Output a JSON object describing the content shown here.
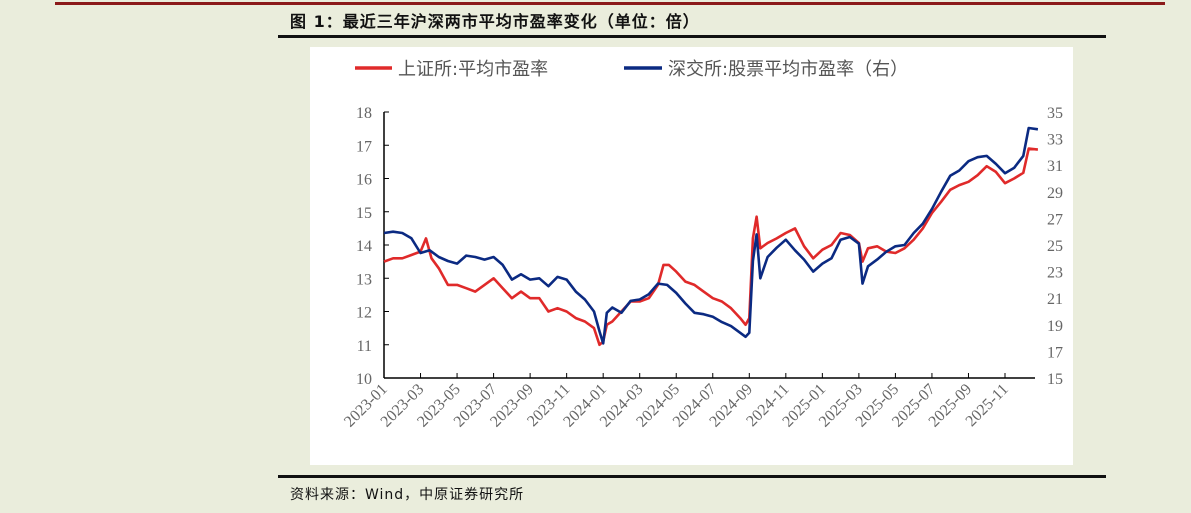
{
  "title": "图 1：最近三年沪深两市平均市盈率变化（单位：倍）",
  "source": "资料来源：Wind，中原证券研究所",
  "chart_data": {
    "type": "line",
    "title": "最近三年沪深两市平均市盈率变化（单位：倍）",
    "xlabel": "",
    "ylabel": "",
    "x_unit": "months since 2023-01",
    "x_ticks": [
      "2023-01",
      "2023-03",
      "2023-05",
      "2023-07",
      "2023-09",
      "2023-11",
      "2024-01",
      "2024-03",
      "2024-05",
      "2024-07",
      "2024-09",
      "2024-11",
      "2025-01",
      "2025-03",
      "2025-05",
      "2025-07",
      "2025-09",
      "2025-11"
    ],
    "xlim": [
      0,
      35.8
    ],
    "ylim_left": [
      10,
      18
    ],
    "yticks_left": [
      "10",
      "11",
      "12",
      "13",
      "14",
      "15",
      "16",
      "17",
      "18"
    ],
    "ylim_right": [
      15,
      35
    ],
    "yticks_right": [
      "15",
      "17",
      "19",
      "21",
      "23",
      "25",
      "27",
      "29",
      "31",
      "33",
      "35"
    ],
    "legend_position": "top",
    "series": [
      {
        "name": "上证所:平均市盈率",
        "axis": "left",
        "color": "#e02a2a",
        "x": [
          0,
          0.5,
          1,
          1.5,
          2,
          2.3,
          2.6,
          3,
          3.5,
          4,
          4.5,
          5,
          5.5,
          6,
          6.5,
          7,
          7.5,
          8,
          8.5,
          9,
          9.5,
          10,
          10.5,
          11,
          11.5,
          11.8,
          12,
          12.2,
          12.5,
          13,
          13.5,
          14,
          14.5,
          15,
          15.3,
          15.6,
          16,
          16.5,
          17,
          17.5,
          18,
          18.5,
          19,
          19.5,
          19.8,
          20,
          20.2,
          20.4,
          20.6,
          21,
          21.5,
          22,
          22.5,
          23,
          23.5,
          24,
          24.5,
          25,
          25.5,
          26,
          26.2,
          26.5,
          27,
          27.5,
          28,
          28.5,
          29,
          29.5,
          30,
          30.5,
          31,
          31.5,
          32,
          32.5,
          33,
          33.5,
          34,
          34.5,
          35,
          35.3,
          35.8
        ],
        "values": [
          13.5,
          13.6,
          13.6,
          13.7,
          13.8,
          14.2,
          13.6,
          13.3,
          12.8,
          12.8,
          12.7,
          12.6,
          12.8,
          13.0,
          12.7,
          12.4,
          12.6,
          12.4,
          12.4,
          12.0,
          12.1,
          12.0,
          11.8,
          11.7,
          11.5,
          11.0,
          11.1,
          11.6,
          11.7,
          12.0,
          12.3,
          12.3,
          12.4,
          12.8,
          13.4,
          13.4,
          13.2,
          12.9,
          12.8,
          12.6,
          12.4,
          12.3,
          12.1,
          11.8,
          11.6,
          11.8,
          14.2,
          14.85,
          13.9,
          14.06,
          14.2,
          14.36,
          14.5,
          13.96,
          13.6,
          13.86,
          14.0,
          14.36,
          14.3,
          14.06,
          13.5,
          13.9,
          13.96,
          13.8,
          13.76,
          13.9,
          14.16,
          14.5,
          14.96,
          15.3,
          15.66,
          15.8,
          15.9,
          16.1,
          16.37,
          16.2,
          15.86,
          16.0,
          16.17,
          16.9,
          16.87
        ]
      },
      {
        "name": "深交所:股票平均市盈率（右）",
        "axis": "right",
        "color": "#0b2a82",
        "x": [
          0,
          0.5,
          1,
          1.5,
          2,
          2.5,
          3,
          3.5,
          4,
          4.5,
          5,
          5.5,
          6,
          6.5,
          7,
          7.5,
          8,
          8.5,
          9,
          9.5,
          10,
          10.5,
          11,
          11.5,
          11.8,
          12,
          12.2,
          12.5,
          13,
          13.5,
          14,
          14.5,
          15,
          15.5,
          16,
          16.5,
          17,
          17.5,
          18,
          18.5,
          19,
          19.5,
          19.8,
          20,
          20.2,
          20.4,
          20.6,
          21,
          21.5,
          22,
          22.5,
          23,
          23.5,
          24,
          24.5,
          25,
          25.5,
          26,
          26.2,
          26.5,
          27,
          27.5,
          28,
          28.5,
          29,
          29.5,
          30,
          30.5,
          31,
          31.5,
          32,
          32.5,
          33,
          33.5,
          34,
          34.5,
          35,
          35.3,
          35.8
        ],
        "values": [
          25.9,
          26.0,
          25.9,
          25.5,
          24.4,
          24.6,
          24.1,
          23.8,
          23.6,
          24.2,
          24.1,
          23.9,
          24.1,
          23.5,
          22.4,
          22.8,
          22.4,
          22.5,
          21.9,
          22.6,
          22.4,
          21.5,
          20.9,
          20.0,
          18.5,
          17.6,
          19.9,
          20.3,
          19.9,
          20.8,
          20.9,
          21.3,
          22.1,
          22.0,
          21.4,
          20.6,
          19.9,
          19.8,
          19.6,
          19.2,
          18.9,
          18.4,
          18.1,
          18.4,
          23.8,
          25.8,
          22.5,
          24.1,
          24.8,
          25.4,
          24.6,
          23.9,
          23.0,
          23.6,
          24.0,
          25.4,
          25.6,
          25.1,
          22.1,
          23.4,
          23.9,
          24.5,
          24.9,
          25.0,
          25.9,
          26.6,
          27.7,
          29.0,
          30.2,
          30.6,
          31.3,
          31.6,
          31.7,
          31.1,
          30.4,
          30.8,
          31.7,
          33.8,
          33.7
        ]
      }
    ]
  }
}
